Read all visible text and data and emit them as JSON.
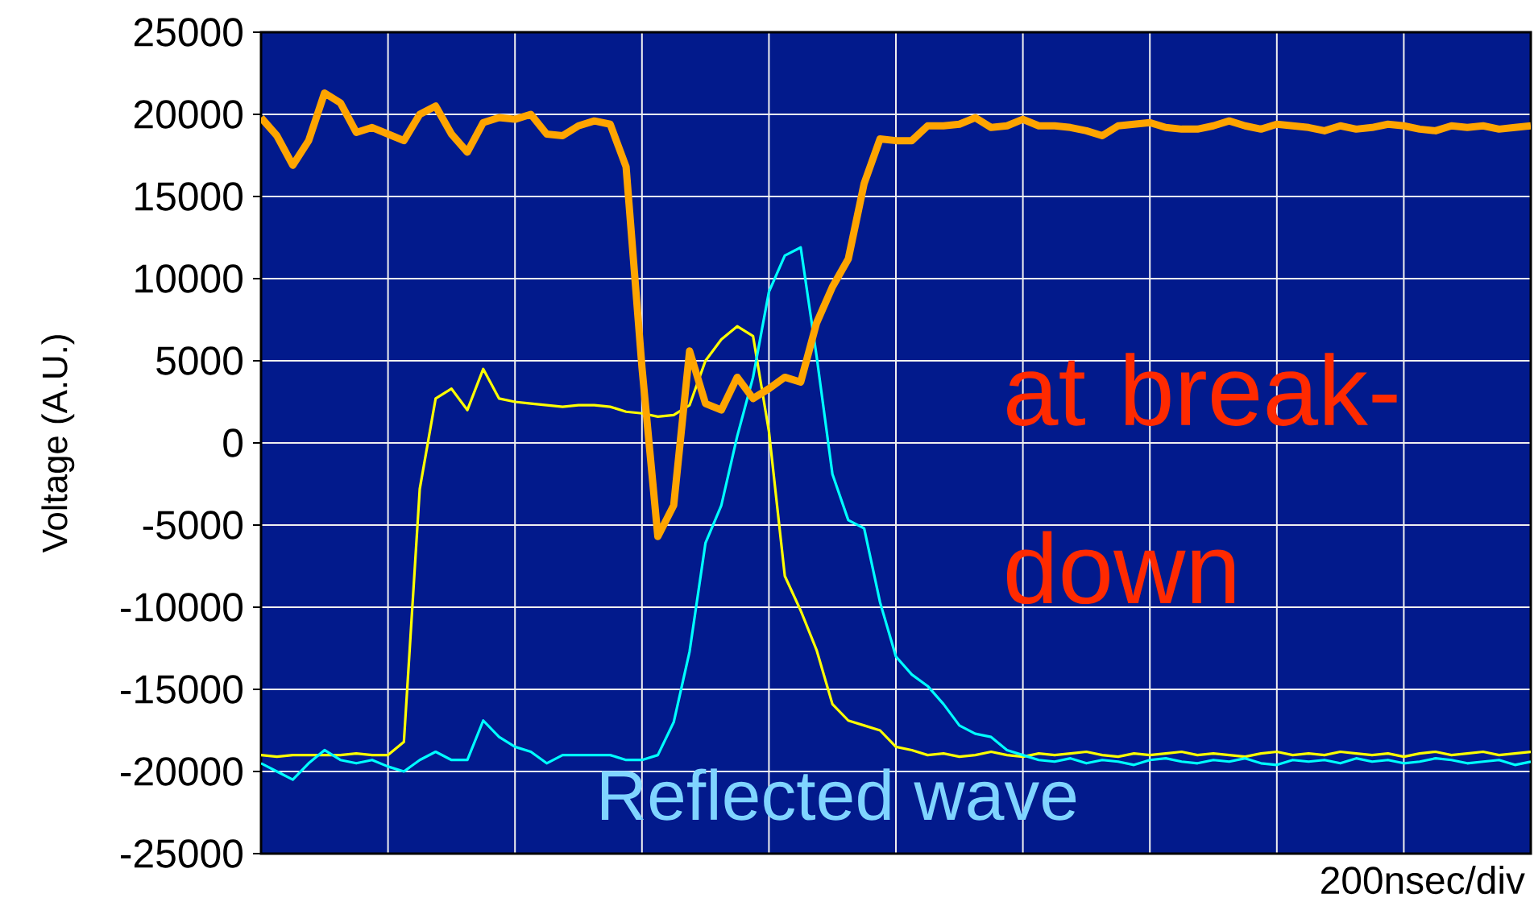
{
  "chart_data": {
    "type": "line",
    "xlabel": "200nsec/div",
    "ylabel": "Voltage (A.U.)",
    "annotations": [
      "at break-down"
    ],
    "categories": [
      null,
      null,
      null,
      null,
      null,
      null,
      null,
      null,
      null,
      null,
      null,
      null,
      null,
      null,
      null,
      null,
      null,
      null,
      null,
      null,
      null,
      null,
      null,
      null,
      null,
      null,
      null,
      null,
      null,
      null,
      null,
      null,
      null,
      null,
      null,
      null,
      null,
      null,
      null,
      null,
      null,
      null,
      null,
      null,
      null,
      null,
      null,
      null,
      null,
      null,
      null,
      null,
      null,
      null,
      null,
      null,
      null,
      null,
      null,
      null,
      null,
      null,
      null,
      null,
      null,
      null,
      null,
      null,
      null,
      null,
      null,
      null,
      null,
      null,
      null,
      null,
      null,
      null,
      null,
      null,
      null
    ],
    "ylim": [
      -25000,
      25000
    ],
    "yticks": [
      -25000,
      -20000,
      -15000,
      -10000,
      -5000,
      0,
      5000,
      10000,
      15000,
      20000,
      25000
    ],
    "grid": true,
    "series": [
      {
        "color": "#ffa500",
        "values": [
          19800,
          18700,
          16900,
          18400,
          21300,
          20700,
          18900,
          19200,
          18800,
          18400,
          20000,
          20500,
          18800,
          17700,
          19500,
          19800,
          19700,
          20000,
          18800,
          18700,
          19300,
          19600,
          19400,
          16800,
          4600,
          -5700,
          -3800,
          5600,
          2400,
          2000,
          4000,
          2700,
          3300,
          4000,
          3700,
          7300,
          9500,
          11200,
          15800,
          18500,
          18400,
          18400,
          19300,
          19300,
          19400,
          19800,
          19200,
          19300,
          19700,
          19300,
          19300,
          19200,
          19000,
          18700,
          19300,
          19400,
          19500,
          19200,
          19100,
          19100,
          19300,
          19600,
          19300,
          19100,
          19400,
          19300,
          19200,
          19000,
          19300,
          19100,
          19200,
          19400,
          19300,
          19100,
          19000,
          19300,
          19200,
          19300,
          19100,
          19200,
          19300
        ]
      },
      {
        "color": "#ffff00",
        "values": [
          -19000,
          -19100,
          -19000,
          -19000,
          -19000,
          -19000,
          -18900,
          -19000,
          -19000,
          -18200,
          -2800,
          2700,
          3300,
          2000,
          4500,
          2700,
          2500,
          2400,
          2300,
          2200,
          2300,
          2300,
          2200,
          1900,
          1800,
          1600,
          1700,
          2300,
          5000,
          6300,
          7100,
          6500,
          700,
          -8100,
          -10200,
          -12600,
          -15900,
          -16900,
          -17200,
          -17500,
          -18500,
          -18700,
          -19000,
          -18900,
          -19100,
          -19000,
          -18800,
          -19000,
          -19100,
          -18900,
          -19000,
          -18900,
          -18800,
          -19000,
          -19100,
          -18900,
          -19000,
          -18900,
          -18800,
          -19000,
          -18900,
          -19000,
          -19100,
          -18900,
          -18800,
          -19000,
          -18900,
          -19000,
          -18800,
          -18900,
          -19000,
          -18900,
          -19100,
          -18900,
          -18800,
          -19000,
          -18900,
          -18800,
          -19000,
          -18900,
          -18800
        ]
      },
      {
        "name": "Reflected wave",
        "color": "#00ffff",
        "values": [
          -19500,
          -20000,
          -20500,
          -19500,
          -18700,
          -19300,
          -19500,
          -19300,
          -19700,
          -20000,
          -19300,
          -18800,
          -19300,
          -19300,
          -16900,
          -17900,
          -18500,
          -18800,
          -19500,
          -19000,
          -19000,
          -19000,
          -19000,
          -19300,
          -19300,
          -19000,
          -17000,
          -12700,
          -6100,
          -3800,
          400,
          4000,
          9200,
          11400,
          11900,
          5300,
          -1900,
          -4700,
          -5200,
          -9700,
          -13000,
          -14100,
          -14800,
          -15900,
          -17200,
          -17700,
          -17900,
          -18700,
          -19000,
          -19300,
          -19400,
          -19200,
          -19500,
          -19300,
          -19400,
          -19600,
          -19300,
          -19200,
          -19400,
          -19500,
          -19300,
          -19400,
          -19200,
          -19500,
          -19600,
          -19300,
          -19400,
          -19300,
          -19500,
          -19200,
          -19400,
          -19300,
          -19500,
          -19400,
          -19200,
          -19300,
          -19500,
          -19400,
          -19300,
          -19600,
          -19400
        ]
      }
    ]
  }
}
